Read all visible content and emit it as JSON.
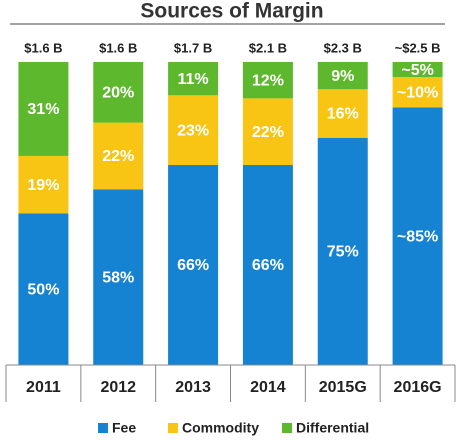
{
  "chart_data": {
    "type": "stacked_bar",
    "title": "Sources of Margin",
    "categories": [
      "2011",
      "2012",
      "2013",
      "2014",
      "2015G",
      "2016G"
    ],
    "series": [
      {
        "name": "Fee",
        "color": "#1582d2",
        "values": [
          50,
          58,
          66,
          66,
          75,
          85
        ],
        "value_labels": [
          "50%",
          "58%",
          "66%",
          "66%",
          "75%",
          "~85%"
        ]
      },
      {
        "name": "Commodity",
        "color": "#f9c514",
        "values": [
          19,
          22,
          23,
          22,
          16,
          10
        ],
        "value_labels": [
          "19%",
          "22%",
          "23%",
          "22%",
          "16%",
          "~10%"
        ]
      },
      {
        "name": "Differential",
        "color": "#5eb82e",
        "values": [
          31,
          20,
          11,
          12,
          9,
          5
        ],
        "value_labels": [
          "31%",
          "20%",
          "11%",
          "12%",
          "9%",
          "~5%"
        ]
      }
    ],
    "totals": {
      "values": [
        1.6,
        1.6,
        1.7,
        2.1,
        2.3,
        2.5
      ],
      "value_labels": [
        "$1.6 B",
        "$1.6 B",
        "$1.7 B",
        "$2.1 B",
        "$2.3 B",
        "~$2.5 B"
      ]
    },
    "ylim": [
      0,
      100
    ],
    "legend": "bottom"
  }
}
